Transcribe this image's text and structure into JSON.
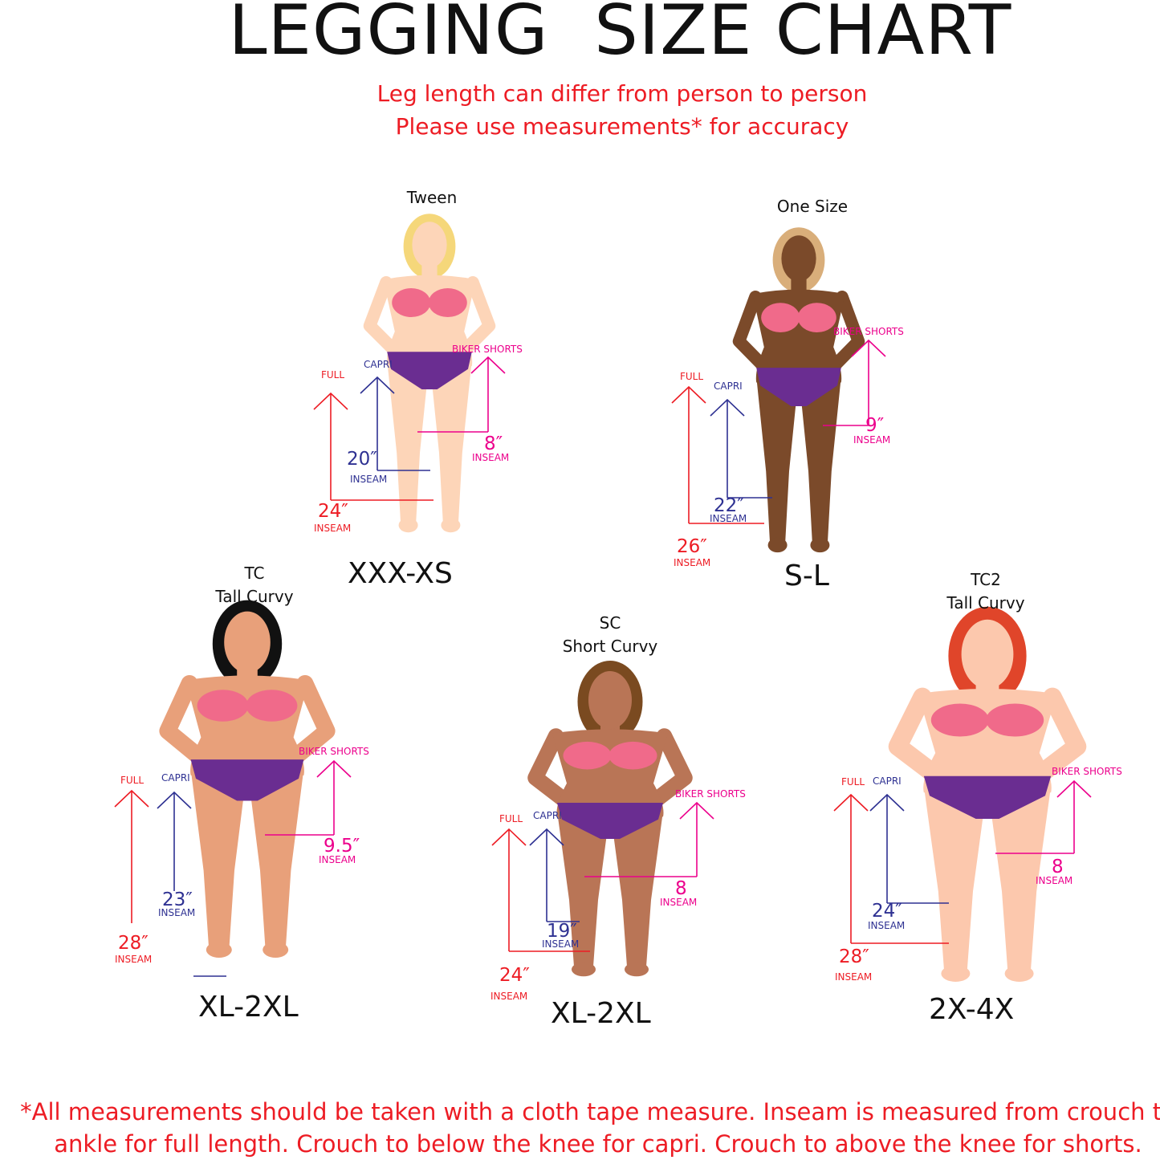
{
  "header": {
    "title": "LEGGING  SIZE CHART",
    "subtitle_line1": "Leg length can differ from person to person",
    "subtitle_line2": "Please use measurements* for accuracy"
  },
  "colors": {
    "full": "#ed1c24",
    "capri": "#2e3192",
    "biker_shorts": "#ec008c",
    "bra": "#f06a8a",
    "briefs": "#6a2d91"
  },
  "panels": [
    {
      "name_line1": "Tween",
      "name_line2": "",
      "size": "XXX-XS",
      "skin": "#fdd5b8",
      "hair": "#f5d77a",
      "full_label": "FULL",
      "full_value": "24″",
      "full_unit": "INSEAM",
      "capri_label": "CAPRI",
      "capri_value": "20″",
      "capri_unit": "INSEAM",
      "shorts_label": "BIKER SHORTS",
      "shorts_value": "8″",
      "shorts_unit": "INSEAM"
    },
    {
      "name_line1": "One Size",
      "name_line2": "",
      "size": "S-L",
      "skin": "#7b4a2a",
      "hair": "#d9ae7a",
      "full_label": "FULL",
      "full_value": "26″",
      "full_unit": "INSEAM",
      "capri_label": "CAPRI",
      "capri_value": "22″",
      "capri_unit": "INSEAM",
      "shorts_label": "BIKER SHORTS",
      "shorts_value": "9″",
      "shorts_unit": "INSEAM"
    },
    {
      "name_line1": "TC",
      "name_line2": "Tall Curvy",
      "size": "XL-2XL",
      "skin": "#e8a07a",
      "hair": "#111111",
      "full_label": "FULL",
      "full_value": "28″",
      "full_unit": "INSEAM",
      "capri_label": "CAPRI",
      "capri_value": "23″",
      "capri_unit": "INSEAM",
      "shorts_label": "BIKER SHORTS",
      "shorts_value": "9.5″",
      "shorts_unit": "INSEAM"
    },
    {
      "name_line1": "SC",
      "name_line2": "Short Curvy",
      "size": "XL-2XL",
      "skin": "#b97556",
      "hair": "#7a4a20",
      "full_label": "FULL",
      "full_value": "24″",
      "full_unit": "INSEAM",
      "capri_label": "CAPRI",
      "capri_value": "19″",
      "capri_unit": "INSEAM",
      "shorts_label": "BIKER SHORTS",
      "shorts_value": "8",
      "shorts_unit": "INSEAM"
    },
    {
      "name_line1": "TC2",
      "name_line2": "Tall Curvy",
      "size": "2X-4X",
      "skin": "#fcc8ad",
      "hair": "#e0452a",
      "full_label": "FULL",
      "full_value": "28″",
      "full_unit": "INSEAM",
      "capri_label": "CAPRI",
      "capri_value": "24″",
      "capri_unit": "INSEAM",
      "shorts_label": "BIKER SHORTS",
      "shorts_value": "8",
      "shorts_unit": "INSEAM"
    }
  ],
  "footer": {
    "line1": "*All measurements should be taken with a cloth tape measure. Inseam is measured from crouch to",
    "line2": "ankle for full length. Crouch to below the knee for capri. Crouch to above the knee for shorts."
  }
}
